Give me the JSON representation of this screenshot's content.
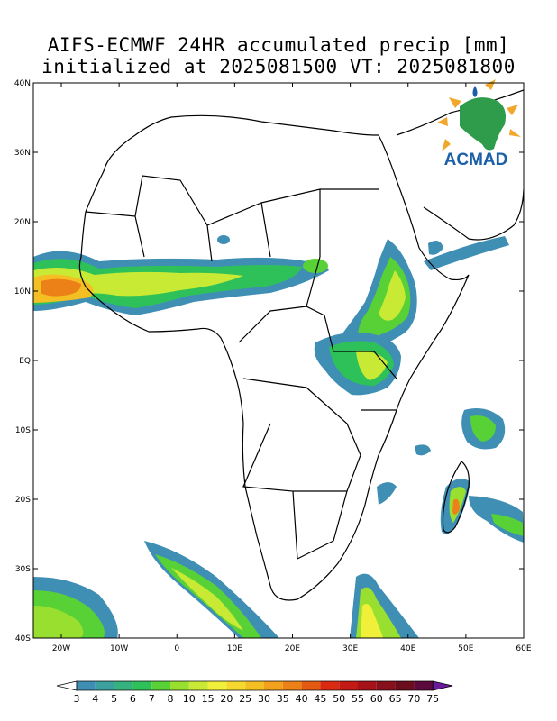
{
  "title": {
    "line1": "AIFS-ECMWF 24HR accumulated precip [mm]",
    "line2": "initialized at 2025081500 VT: 2025081800"
  },
  "logo": {
    "text": "ACMAD"
  },
  "axes": {
    "lat_labels": [
      "40N",
      "30N",
      "20N",
      "10N",
      "EQ",
      "10S",
      "20S",
      "30S",
      "40S"
    ],
    "lon_labels": [
      "20W",
      "10W",
      "0",
      "10E",
      "20E",
      "30E",
      "40E",
      "50E",
      "60E"
    ]
  },
  "colorbar": {
    "labels": [
      "3",
      "4",
      "5",
      "6",
      "7",
      "8",
      "10",
      "15",
      "20",
      "25",
      "30",
      "35",
      "40",
      "45",
      "50",
      "55",
      "60",
      "65",
      "70",
      "75"
    ],
    "colors": [
      "#ffffff",
      "#3f8fb5",
      "#3ba09e",
      "#35b27d",
      "#2ec159",
      "#57d136",
      "#98df2f",
      "#c8ea34",
      "#f0f03a",
      "#f5d92e",
      "#f4bf22",
      "#f1a11b",
      "#ec8118",
      "#e55a13",
      "#db2a12",
      "#c41a16",
      "#a51318",
      "#86101c",
      "#6c0d1d",
      "#5c0a3e",
      "#6b1a9c"
    ]
  }
}
